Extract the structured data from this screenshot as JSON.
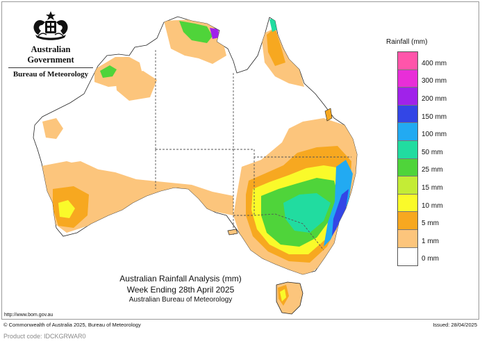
{
  "header": {
    "government": "Australian Government",
    "bureau": "Bureau of Meteorology"
  },
  "map": {
    "title": "Australian Rainfall Analysis (mm)",
    "period": "Week Ending 28th April 2025",
    "source": "Australian Bureau of Meteorology",
    "colors": {
      "c1": "#fcc57c",
      "c5": "#f7a820",
      "c10": "#fafa2a",
      "c15": "#c4ec36",
      "c25": "#4fd43a",
      "c50": "#21dca0",
      "c100": "#22aaf2",
      "c150": "#3346e6",
      "c200": "#a022ea",
      "c300": "#e82ed8",
      "c400": "#ff55aa"
    }
  },
  "legend": {
    "title": "Rainfall (mm)",
    "items": [
      {
        "label": "400 mm",
        "color": "#ff55aa"
      },
      {
        "label": "300 mm",
        "color": "#e82ed8"
      },
      {
        "label": "200 mm",
        "color": "#a022ea"
      },
      {
        "label": "150 mm",
        "color": "#3346e6"
      },
      {
        "label": "100 mm",
        "color": "#22aaf2"
      },
      {
        "label": "50 mm",
        "color": "#21dca0"
      },
      {
        "label": "25 mm",
        "color": "#4fd43a"
      },
      {
        "label": "15 mm",
        "color": "#c4ec36"
      },
      {
        "label": "10 mm",
        "color": "#fafa2a"
      },
      {
        "label": "5 mm",
        "color": "#f7a820"
      },
      {
        "label": "1 mm",
        "color": "#fcc57c"
      },
      {
        "label": "0 mm",
        "color": "#ffffff"
      }
    ]
  },
  "footer": {
    "url": "http://www.bom.gov.au",
    "copyright": "© Commonwealth of Australia 2025, Bureau of Meteorology",
    "issued": "Issued: 28/04/2025",
    "product_code": "Product code: IDCKGRWAR0"
  }
}
